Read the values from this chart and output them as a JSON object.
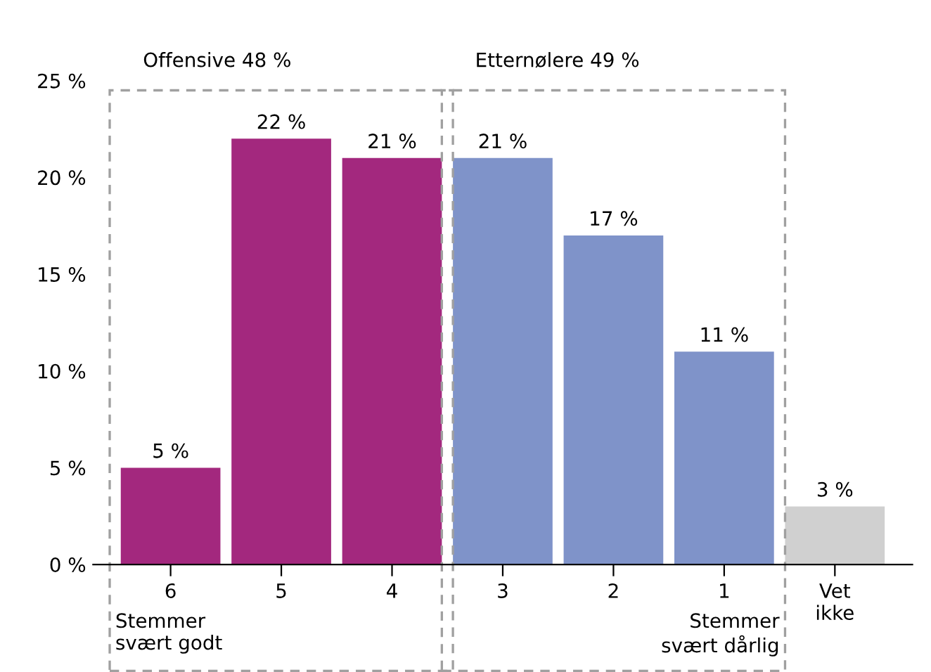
{
  "chart_data": {
    "type": "bar",
    "categories": [
      "6",
      "5",
      "4",
      "3",
      "2",
      "1",
      "Vet\nikke"
    ],
    "values": [
      5,
      22,
      21,
      21,
      17,
      11,
      3
    ],
    "colors": [
      "#a3287e",
      "#a3287e",
      "#a3287e",
      "#7f93c9",
      "#7f93c9",
      "#7f93c9",
      "#d0d0d0"
    ],
    "value_labels": [
      "5 %",
      "22 %",
      "21 %",
      "21 %",
      "17 %",
      "11 %",
      "3 %"
    ],
    "ylim": [
      0,
      25
    ],
    "yticks": [
      {
        "value": 0,
        "label": "0 %"
      },
      {
        "value": 5,
        "label": "5 %"
      },
      {
        "value": 10,
        "label": "10 %"
      },
      {
        "value": 15,
        "label": "15 %"
      },
      {
        "value": 20,
        "label": "20 %"
      },
      {
        "value": 25,
        "label": "25 %"
      }
    ],
    "annotations": [
      "Offensive 48 %",
      "Etternølere 49 %",
      "Stemmer\nsvært godt",
      "Stemmer\nsvært dårlig"
    ],
    "grid": false,
    "legend": false
  }
}
